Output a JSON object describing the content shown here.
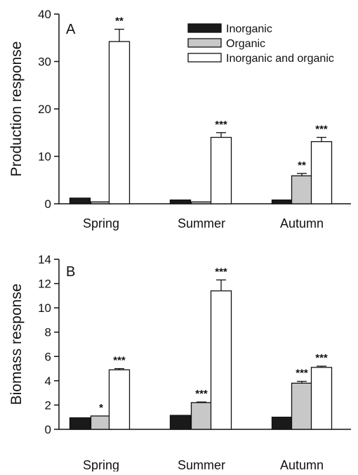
{
  "colors": {
    "inorganic": "#1a1a1a",
    "organic": "#c8c8c8",
    "inorganic_and_organic": "#ffffff",
    "stroke": "#111111"
  },
  "chart_data": [
    {
      "type": "bar",
      "panel": "A",
      "categories": [
        "Spring",
        "Summer",
        "Autumn"
      ],
      "ylabel": "Production response",
      "xlabel": "",
      "ylim": [
        0,
        40
      ],
      "yticks": [
        0,
        10,
        20,
        30,
        40
      ],
      "legend": {
        "placement": "top-right",
        "entries": [
          "Inorganic",
          "Organic",
          "Inorganic and organic"
        ]
      },
      "series": [
        {
          "name": "Inorganic",
          "values": [
            1.2,
            0.8,
            0.8
          ],
          "errors": [
            0,
            0,
            0
          ],
          "significance": [
            "",
            "",
            ""
          ]
        },
        {
          "name": "Organic",
          "values": [
            0.4,
            0.4,
            5.9
          ],
          "errors": [
            0,
            0,
            0.5
          ],
          "significance": [
            "",
            "",
            "**"
          ]
        },
        {
          "name": "Inorganic and organic",
          "values": [
            34.2,
            14.0,
            13.1
          ],
          "errors": [
            2.6,
            1.0,
            0.9
          ],
          "significance": [
            "**",
            "***",
            "***"
          ]
        }
      ]
    },
    {
      "type": "bar",
      "panel": "B",
      "categories": [
        "Spring",
        "Summer",
        "Autumn"
      ],
      "ylabel": "Biomass response",
      "xlabel": "",
      "ylim": [
        0,
        14
      ],
      "yticks": [
        0,
        2,
        4,
        6,
        8,
        10,
        12,
        14
      ],
      "series": [
        {
          "name": "Inorganic",
          "values": [
            0.95,
            1.15,
            1.0
          ],
          "errors": [
            0,
            0,
            0
          ],
          "significance": [
            "",
            "",
            ""
          ]
        },
        {
          "name": "Organic",
          "values": [
            1.1,
            2.2,
            3.8
          ],
          "errors": [
            0,
            0.05,
            0.15
          ],
          "significance": [
            "*",
            "***",
            "***"
          ]
        },
        {
          "name": "Inorganic and organic",
          "values": [
            4.9,
            11.4,
            5.1
          ],
          "errors": [
            0.1,
            0.9,
            0.1
          ],
          "significance": [
            "***",
            "***",
            "***"
          ]
        }
      ]
    }
  ]
}
